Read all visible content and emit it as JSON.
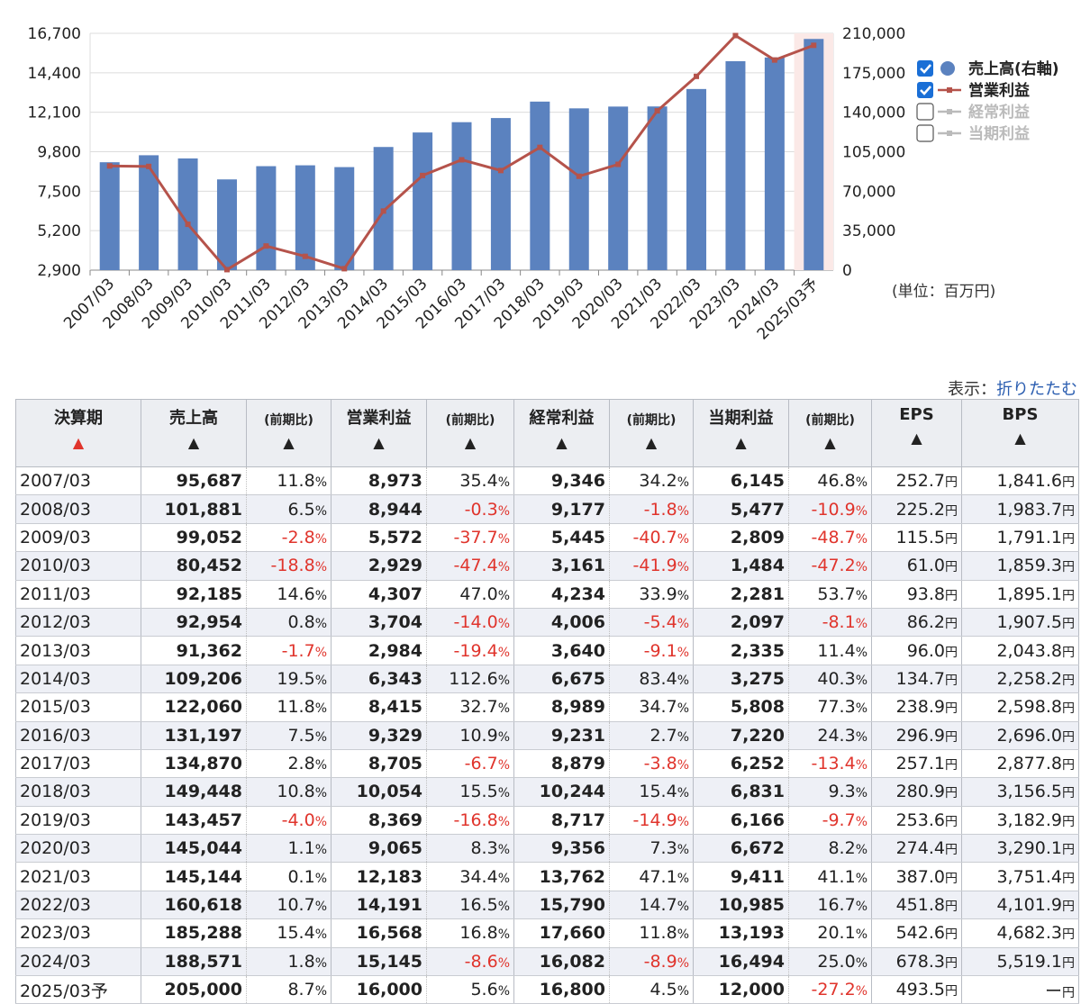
{
  "chart_data": {
    "type": "bar",
    "categories": [
      "2007/03",
      "2008/03",
      "2009/03",
      "2010/03",
      "2011/03",
      "2012/03",
      "2013/03",
      "2014/03",
      "2015/03",
      "2016/03",
      "2017/03",
      "2018/03",
      "2019/03",
      "2020/03",
      "2021/03",
      "2022/03",
      "2023/03",
      "2024/03",
      "2025/03予"
    ],
    "series": [
      {
        "name": "売上高(右軸)",
        "type": "bar",
        "axis": "right",
        "color": "#5b82bf",
        "values": [
          95687,
          101881,
          99052,
          80452,
          92185,
          92954,
          91362,
          109206,
          122060,
          131197,
          134870,
          149448,
          143457,
          145044,
          145144,
          160618,
          185288,
          188571,
          205000
        ]
      },
      {
        "name": "営業利益",
        "type": "line",
        "axis": "left",
        "color": "#b5534b",
        "values": [
          8973,
          8944,
          5572,
          2929,
          4307,
          3704,
          2984,
          6343,
          8415,
          9329,
          8705,
          10054,
          8369,
          9065,
          12183,
          14191,
          16568,
          15145,
          16000
        ]
      }
    ],
    "left_axis": {
      "min": 2900,
      "max": 16700,
      "ticks": [
        "16,700",
        "14,400",
        "12,100",
        "9,800",
        "7,500",
        "5,200",
        "2,900"
      ]
    },
    "right_axis": {
      "min": 0,
      "max": 210000,
      "ticks": [
        "210,000",
        "175,000",
        "140,000",
        "105,000",
        "70,000",
        "35,000",
        "0"
      ]
    },
    "unit_label": "(単位：百万円)",
    "legend": {
      "placement": "right",
      "items": [
        {
          "label": "売上高(右軸)",
          "checked": true,
          "active": true
        },
        {
          "label": "営業利益",
          "checked": true,
          "active": true
        },
        {
          "label": "経常利益",
          "checked": false,
          "active": false
        },
        {
          "label": "当期利益",
          "checked": false,
          "active": false
        }
      ]
    },
    "forecast_highlight_color": "#fbe9e7"
  },
  "toggle": {
    "prefix": "表示：",
    "link": "折りたたむ"
  },
  "table": {
    "headers": [
      {
        "label": "決算期",
        "arrow": "▲",
        "active": true
      },
      {
        "label": "売上高",
        "arrow": "▲"
      },
      {
        "label": "(前期比)",
        "arrow": "▲",
        "small": true
      },
      {
        "label": "営業利益",
        "arrow": "▲"
      },
      {
        "label": "(前期比)",
        "arrow": "▲",
        "small": true
      },
      {
        "label": "経常利益",
        "arrow": "▲"
      },
      {
        "label": "(前期比)",
        "arrow": "▲",
        "small": true
      },
      {
        "label": "当期利益",
        "arrow": "▲"
      },
      {
        "label": "(前期比)",
        "arrow": "▲",
        "small": true
      },
      {
        "label": "EPS",
        "arrow": "▲"
      },
      {
        "label": "BPS",
        "arrow": "▲"
      }
    ],
    "rows": [
      [
        "2007/03",
        "95,687",
        "11.8",
        "8,973",
        "35.4",
        "9,346",
        "34.2",
        "6,145",
        "46.8",
        "252.7",
        "1,841.6"
      ],
      [
        "2008/03",
        "101,881",
        "6.5",
        "8,944",
        "-0.3",
        "9,177",
        "-1.8",
        "5,477",
        "-10.9",
        "225.2",
        "1,983.7"
      ],
      [
        "2009/03",
        "99,052",
        "-2.8",
        "5,572",
        "-37.7",
        "5,445",
        "-40.7",
        "2,809",
        "-48.7",
        "115.5",
        "1,791.1"
      ],
      [
        "2010/03",
        "80,452",
        "-18.8",
        "2,929",
        "-47.4",
        "3,161",
        "-41.9",
        "1,484",
        "-47.2",
        "61.0",
        "1,859.3"
      ],
      [
        "2011/03",
        "92,185",
        "14.6",
        "4,307",
        "47.0",
        "4,234",
        "33.9",
        "2,281",
        "53.7",
        "93.8",
        "1,895.1"
      ],
      [
        "2012/03",
        "92,954",
        "0.8",
        "3,704",
        "-14.0",
        "4,006",
        "-5.4",
        "2,097",
        "-8.1",
        "86.2",
        "1,907.5"
      ],
      [
        "2013/03",
        "91,362",
        "-1.7",
        "2,984",
        "-19.4",
        "3,640",
        "-9.1",
        "2,335",
        "11.4",
        "96.0",
        "2,043.8"
      ],
      [
        "2014/03",
        "109,206",
        "19.5",
        "6,343",
        "112.6",
        "6,675",
        "83.4",
        "3,275",
        "40.3",
        "134.7",
        "2,258.2"
      ],
      [
        "2015/03",
        "122,060",
        "11.8",
        "8,415",
        "32.7",
        "8,989",
        "34.7",
        "5,808",
        "77.3",
        "238.9",
        "2,598.8"
      ],
      [
        "2016/03",
        "131,197",
        "7.5",
        "9,329",
        "10.9",
        "9,231",
        "2.7",
        "7,220",
        "24.3",
        "296.9",
        "2,696.0"
      ],
      [
        "2017/03",
        "134,870",
        "2.8",
        "8,705",
        "-6.7",
        "8,879",
        "-3.8",
        "6,252",
        "-13.4",
        "257.1",
        "2,877.8"
      ],
      [
        "2018/03",
        "149,448",
        "10.8",
        "10,054",
        "15.5",
        "10,244",
        "15.4",
        "6,831",
        "9.3",
        "280.9",
        "3,156.5"
      ],
      [
        "2019/03",
        "143,457",
        "-4.0",
        "8,369",
        "-16.8",
        "8,717",
        "-14.9",
        "6,166",
        "-9.7",
        "253.6",
        "3,182.9"
      ],
      [
        "2020/03",
        "145,044",
        "1.1",
        "9,065",
        "8.3",
        "9,356",
        "7.3",
        "6,672",
        "8.2",
        "274.4",
        "3,290.1"
      ],
      [
        "2021/03",
        "145,144",
        "0.1",
        "12,183",
        "34.4",
        "13,762",
        "47.1",
        "9,411",
        "41.1",
        "387.0",
        "3,751.4"
      ],
      [
        "2022/03",
        "160,618",
        "10.7",
        "14,191",
        "16.5",
        "15,790",
        "14.7",
        "10,985",
        "16.7",
        "451.8",
        "4,101.9"
      ],
      [
        "2023/03",
        "185,288",
        "15.4",
        "16,568",
        "16.8",
        "17,660",
        "11.8",
        "13,193",
        "20.1",
        "542.6",
        "4,682.3"
      ],
      [
        "2024/03",
        "188,571",
        "1.8",
        "15,145",
        "-8.6",
        "16,082",
        "-8.9",
        "16,494",
        "25.0",
        "678.3",
        "5,519.1"
      ],
      [
        "2025/03予",
        "205,000",
        "8.7",
        "16,000",
        "5.6",
        "16,800",
        "4.5",
        "12,000",
        "-27.2",
        "493.5",
        "ー"
      ]
    ],
    "pct_suffix": "%",
    "yen_suffix": "円",
    "negative_color": "#e0342c"
  }
}
